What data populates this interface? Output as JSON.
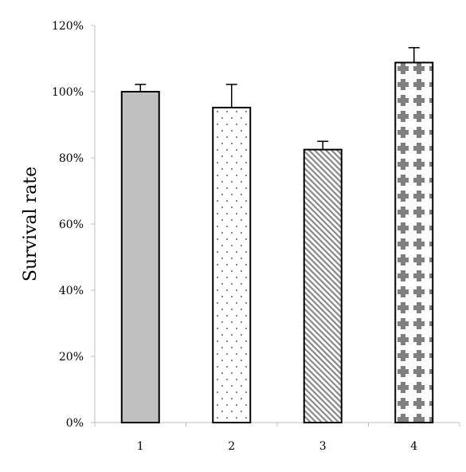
{
  "chart_data": {
    "type": "bar",
    "categories": [
      "1",
      "2",
      "3",
      "4"
    ],
    "values": [
      100,
      95.2,
      82.5,
      108.8
    ],
    "error_upper": [
      2.2,
      7.0,
      2.5,
      4.5
    ],
    "ylabel": "Survival rate",
    "xlabel": "",
    "ylim": [
      0,
      120
    ],
    "y_ticks": [
      "0%",
      "20%",
      "40%",
      "60%",
      "80%",
      "100%",
      "120%"
    ],
    "y_tick_values": [
      0,
      20,
      40,
      60,
      80,
      100,
      120
    ],
    "grid": false,
    "legend": "none",
    "bar_fills": [
      "solid-gray",
      "dots",
      "diagonal-hatch",
      "cross-plus"
    ],
    "colors": {
      "solid_gray": "#c0c0c0",
      "pattern": "#808080",
      "outline": "#000000",
      "axis": "#bfbfbf"
    }
  }
}
